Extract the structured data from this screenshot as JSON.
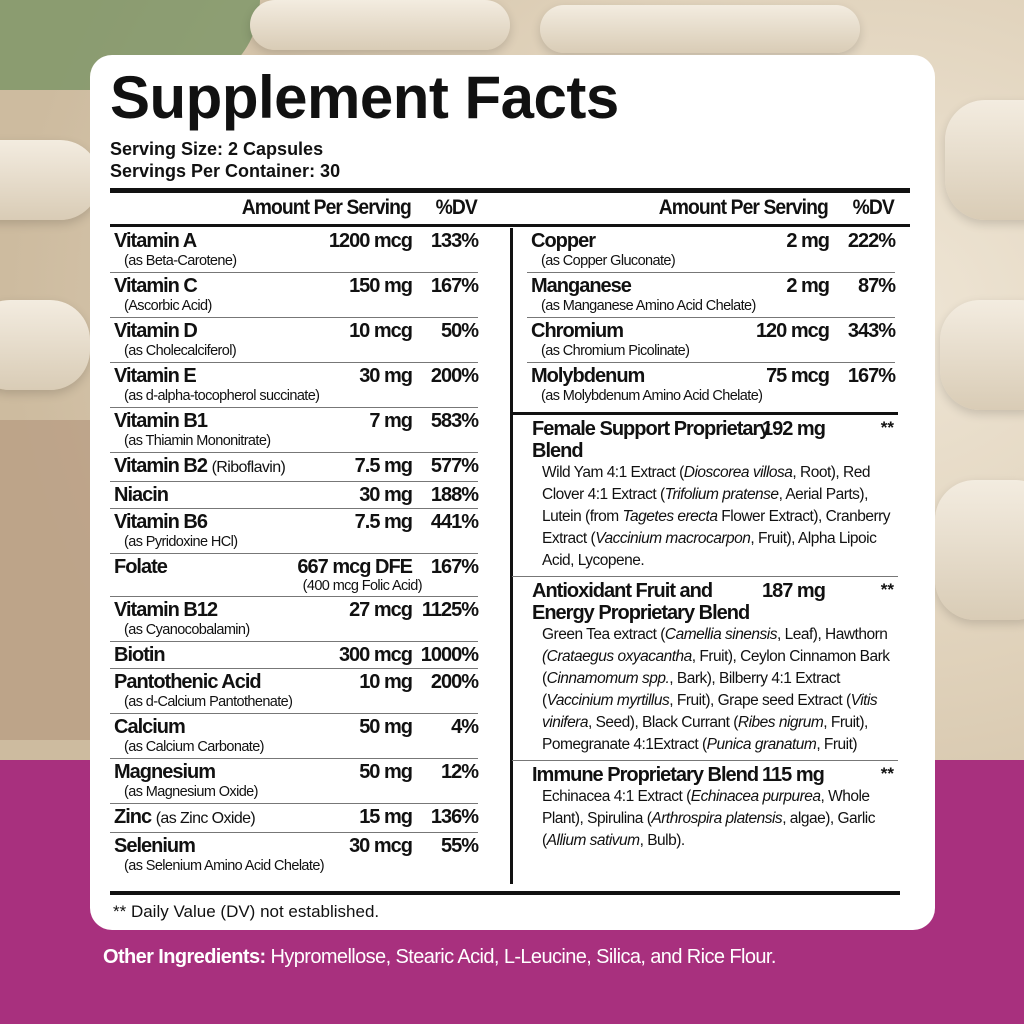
{
  "title": "Supplement Facts",
  "serving_size": "Serving Size: 2 Capsules",
  "servings_per_container": "Servings Per Container: 30",
  "header": {
    "amount": "Amount Per Serving",
    "dv": "%DV"
  },
  "left_rows": [
    {
      "name": "Vitamin A",
      "sub": "(as Beta-Carotene)",
      "amount": "1200 mcg",
      "dv": "133%"
    },
    {
      "name": "Vitamin C",
      "sub": "(Ascorbic Acid)",
      "amount": "150 mg",
      "dv": "167%"
    },
    {
      "name": "Vitamin D",
      "sub": "(as Cholecalciferol)",
      "amount": "10 mcg",
      "dv": "50%"
    },
    {
      "name": "Vitamin E",
      "sub": "(as d-alpha-tocopherol succinate)",
      "amount": "30 mg",
      "dv": "200%"
    },
    {
      "name": "Vitamin B1",
      "sub": "(as Thiamin Mononitrate)",
      "amount": "7 mg",
      "dv": "583%"
    },
    {
      "name": "Vitamin B2",
      "inline": "(Riboflavin)",
      "amount": "7.5 mg",
      "dv": "577%"
    },
    {
      "name": "Niacin",
      "amount": "30 mg",
      "dv": "188%"
    },
    {
      "name": "Vitamin B6",
      "sub": "(as Pyridoxine HCl)",
      "amount": "7.5 mg",
      "dv": "441%"
    },
    {
      "name": "Folate",
      "amount": "667 mcg DFE",
      "amount_sub": "(400 mcg Folic Acid)",
      "dv": "167%"
    },
    {
      "name": "Vitamin B12",
      "sub": "(as Cyanocobalamin)",
      "amount": "27 mcg",
      "dv": "1125%"
    },
    {
      "name": "Biotin",
      "amount": "300 mcg",
      "dv": "1000%"
    },
    {
      "name": "Pantothenic Acid",
      "sub": "(as d-Calcium Pantothenate)",
      "amount": "10 mg",
      "dv": "200%"
    },
    {
      "name": "Calcium",
      "sub": "(as Calcium Carbonate)",
      "amount": "50 mg",
      "dv": "4%"
    },
    {
      "name": "Magnesium",
      "sub": "(as Magnesium Oxide)",
      "amount": "50 mg",
      "dv": "12%"
    },
    {
      "name": "Zinc",
      "inline": "(as Zinc Oxide)",
      "amount": "15 mg",
      "dv": "136%"
    },
    {
      "name": "Selenium",
      "sub": "(as Selenium Amino Acid Chelate)",
      "amount": "30 mcg",
      "dv": "55%"
    }
  ],
  "right_rows": [
    {
      "name": "Copper",
      "sub": "(as Copper Gluconate)",
      "amount": "2 mg",
      "dv": "222%"
    },
    {
      "name": "Manganese",
      "sub": "(as Manganese Amino Acid Chelate)",
      "amount": "2 mg",
      "dv": "87%"
    },
    {
      "name": "Chromium",
      "sub": "(as Chromium Picolinate)",
      "amount": "120 mcg",
      "dv": "343%"
    },
    {
      "name": "Molybdenum",
      "sub": "(as Molybdenum Amino Acid Chelate)",
      "amount": "75 mcg",
      "dv": "167%"
    }
  ],
  "blends": [
    {
      "name": "Female Support Proprietary Blend",
      "amount": "192 mg",
      "dv": "**",
      "ingredients": [
        {
          "t": "Wild Yam 4:1 Extract ("
        },
        {
          "t": "Dioscorea villosa",
          "i": true
        },
        {
          "t": ", Root), Red Clover 4:1 Extract ("
        },
        {
          "t": "Trifolium pratense",
          "i": true
        },
        {
          "t": ", Aerial Parts), Lutein (from "
        },
        {
          "t": "Tagetes erecta",
          "i": true
        },
        {
          "t": " Flower Extract), Cranberry Extract ("
        },
        {
          "t": "Vaccinium macrocarpon",
          "i": true
        },
        {
          "t": ", Fruit), Alpha Lipoic Acid, Lycopene."
        }
      ]
    },
    {
      "name": "Antioxidant Fruit and Energy Proprietary Blend",
      "amount": "187 mg",
      "dv": "**",
      "ingredients": [
        {
          "t": "Green Tea extract ("
        },
        {
          "t": "Camellia sinensis",
          "i": true
        },
        {
          "t": ", Leaf), Hawthorn "
        },
        {
          "t": "(Crataegus oxyacantha",
          "i": true
        },
        {
          "t": ", Fruit), Ceylon Cinnamon Bark ("
        },
        {
          "t": "Cinnamomum spp.",
          "i": true
        },
        {
          "t": ", Bark), Bilberry 4:1 Extract ("
        },
        {
          "t": "Vaccinium myrtillus",
          "i": true
        },
        {
          "t": ", Fruit), Grape seed Extract ("
        },
        {
          "t": "Vitis vinifera",
          "i": true
        },
        {
          "t": ", Seed), Black Currant ("
        },
        {
          "t": "Ribes nigrum",
          "i": true
        },
        {
          "t": ", Fruit), Pomegranate 4:1Extract ("
        },
        {
          "t": "Punica granatum",
          "i": true
        },
        {
          "t": ", Fruit)"
        }
      ]
    },
    {
      "name": "Immune Proprietary Blend",
      "amount": "115 mg",
      "dv": "**",
      "ingredients": [
        {
          "t": "Echinacea 4:1 Extract ("
        },
        {
          "t": "Echinacea purpurea",
          "i": true
        },
        {
          "t": ", Whole Plant), Spirulina ("
        },
        {
          "t": "Arthrospira platensis",
          "i": true
        },
        {
          "t": ", algae), Garlic ("
        },
        {
          "t": "Allium sativum",
          "i": true
        },
        {
          "t": ", Bulb)."
        }
      ]
    }
  ],
  "footnote": "** Daily Value (DV) not established.",
  "other_ingredients": {
    "label": "Other Ingredients:",
    "text": " Hypromellose, Stearic Acid, L-Leucine, Silica, and Rice Flour."
  },
  "colors": {
    "brand_purple": "#a8307e",
    "card": "#ffffff"
  }
}
